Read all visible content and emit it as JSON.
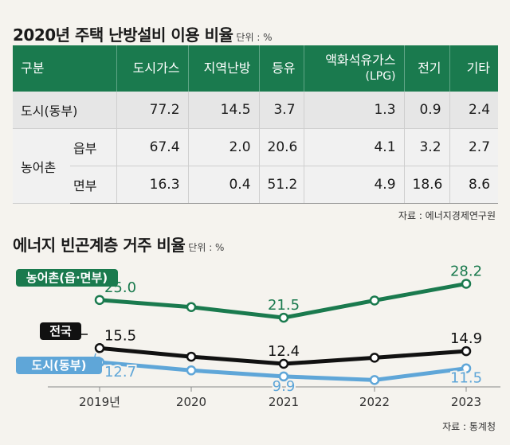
{
  "table_section": {
    "title": "2020년 주택 난방설비 이용 비율",
    "unit": "단위 : %",
    "source": "자료 : 에너지경제연구원",
    "headers": [
      "구분",
      "도시가스",
      "지역난방",
      "등유",
      "액화석유가스",
      "(LPG)",
      "전기",
      "기타"
    ],
    "group_label": "농어촌",
    "rows": [
      {
        "label": "도시(동부)",
        "values": [
          "77.2",
          "14.5",
          "3.7",
          "1.3",
          "0.9",
          "2.4"
        ]
      },
      {
        "label": "읍부",
        "values": [
          "67.4",
          "2.0",
          "20.6",
          "4.1",
          "3.2",
          "2.7"
        ]
      },
      {
        "label": "면부",
        "values": [
          "16.3",
          "0.4",
          "51.2",
          "4.9",
          "18.6",
          "8.6"
        ]
      }
    ]
  },
  "chart_section": {
    "title": "에너지 빈곤계층 거주 비율",
    "unit": "단위 : %",
    "source": "자료 : 통계청"
  },
  "chart_data": [
    {
      "type": "table",
      "title": "2020년 주택 난방설비 이용 비율",
      "unit": "%",
      "columns": [
        "도시가스",
        "지역난방",
        "등유",
        "액화석유가스(LPG)",
        "전기",
        "기타"
      ],
      "rows": [
        {
          "label": "도시(동부)",
          "values": [
            77.2,
            14.5,
            3.7,
            1.3,
            0.9,
            2.4
          ]
        },
        {
          "label": "농어촌 읍부",
          "values": [
            67.4,
            2.0,
            20.6,
            4.1,
            3.2,
            2.7
          ]
        },
        {
          "label": "농어촌 면부",
          "values": [
            16.3,
            0.4,
            51.2,
            4.9,
            18.6,
            8.6
          ]
        }
      ]
    },
    {
      "type": "line",
      "title": "에너지 빈곤계층 거주 비율",
      "unit": "%",
      "x": [
        "2019년",
        "2020",
        "2021",
        "2022",
        "2023"
      ],
      "ylim": [
        8,
        30
      ],
      "grid": false,
      "series": [
        {
          "name": "농어촌(읍·면부)",
          "color": "#1a7a4e",
          "values": [
            25.0,
            23.6,
            21.5,
            24.9,
            28.2
          ],
          "labels": {
            "0": "25.0",
            "2": "21.5",
            "4": "28.2"
          }
        },
        {
          "name": "전국",
          "color": "#111111",
          "values": [
            15.5,
            13.8,
            12.4,
            13.6,
            14.9
          ],
          "labels": {
            "0": "15.5",
            "2": "12.4",
            "4": "14.9"
          }
        },
        {
          "name": "도시(동부)",
          "color": "#5fa6d8",
          "values": [
            12.7,
            11.1,
            9.9,
            9.2,
            11.5
          ],
          "labels": {
            "0": "12.7",
            "2": "9.9",
            "4": "11.5"
          }
        }
      ]
    }
  ]
}
